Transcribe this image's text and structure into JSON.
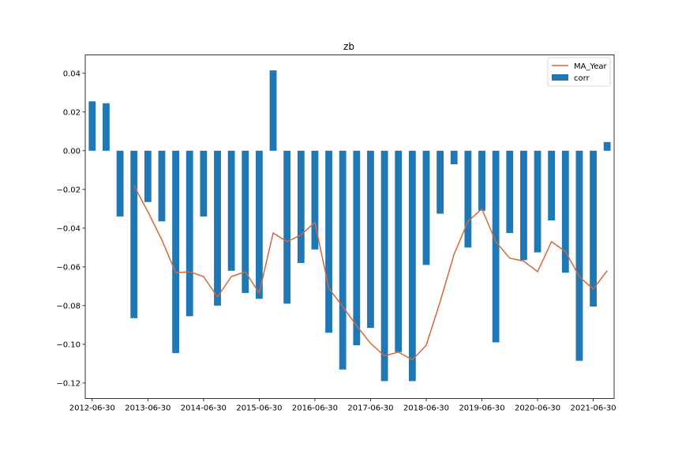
{
  "chart_data": {
    "type": "bar",
    "title": "zb",
    "xlabel": "",
    "ylabel": "",
    "ylim": [
      -0.128,
      0.0495
    ],
    "yticks": [
      0.04,
      0.02,
      0.0,
      -0.02,
      -0.04,
      -0.06,
      -0.08,
      -0.1,
      -0.12
    ],
    "ytick_labels": [
      "0.04",
      "0.02",
      "0.00",
      "−0.02",
      "−0.04",
      "−0.06",
      "−0.08",
      "−0.10",
      "−0.12"
    ],
    "x_tick_labels": [
      "2012-06-30",
      "2013-06-30",
      "2014-06-30",
      "2015-06-30",
      "2016-06-30",
      "2017-06-30",
      "2018-06-30",
      "2019-06-30",
      "2020-06-30",
      "2021-06-30"
    ],
    "x_tick_positions": [
      0,
      4,
      8,
      12,
      16,
      20,
      24,
      28,
      32,
      36
    ],
    "legend_position": "top-right",
    "grid": false,
    "colors": {
      "bar": "#1f77b4",
      "line": "#d2693c"
    },
    "series": [
      {
        "name": "corr",
        "kind": "bar",
        "values": [
          0.0255,
          0.0245,
          -0.034,
          -0.0865,
          -0.0265,
          -0.0365,
          -0.1045,
          -0.0855,
          -0.034,
          -0.08,
          -0.062,
          -0.0735,
          -0.0765,
          0.0415,
          -0.079,
          -0.058,
          -0.051,
          -0.094,
          -0.113,
          -0.1005,
          -0.0915,
          -0.119,
          -0.104,
          -0.119,
          -0.059,
          -0.0325,
          -0.007,
          -0.05,
          -0.031,
          -0.099,
          -0.0425,
          -0.0565,
          -0.0525,
          -0.036,
          -0.063,
          -0.1085,
          -0.0805,
          0.0045
        ]
      },
      {
        "name": "MA_Year",
        "kind": "line",
        "start_index": 3,
        "values": [
          -0.018,
          -0.0315,
          -0.046,
          -0.063,
          -0.0625,
          -0.065,
          -0.0755,
          -0.065,
          -0.0625,
          -0.0735,
          -0.0425,
          -0.047,
          -0.0435,
          -0.037,
          -0.071,
          -0.0805,
          -0.0905,
          -0.0995,
          -0.106,
          -0.104,
          -0.108,
          -0.1005,
          -0.078,
          -0.0535,
          -0.0365,
          -0.03,
          -0.047,
          -0.0555,
          -0.057,
          -0.0625,
          -0.047,
          -0.052,
          -0.065,
          -0.0715,
          -0.062
        ]
      }
    ]
  }
}
